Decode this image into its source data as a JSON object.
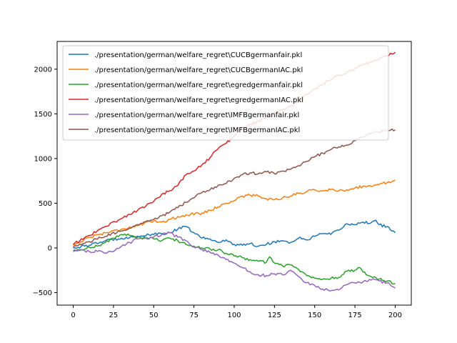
{
  "chart_data": {
    "type": "line",
    "title": "",
    "xlabel": "",
    "ylabel": "",
    "xlim": [
      -10,
      210
    ],
    "ylim": [
      -640,
      2310
    ],
    "xticks": [
      0,
      25,
      50,
      75,
      100,
      125,
      150,
      175,
      200
    ],
    "yticks": [
      -500,
      0,
      500,
      1000,
      1500,
      2000
    ],
    "grid": false,
    "legend_position": "top-left",
    "series": [
      {
        "name": "./presentation/german/welfare_regret\\CUCBgermanfair.pkl",
        "color": "#1f77b4",
        "anchors": [
          [
            0,
            0
          ],
          [
            10,
            30
          ],
          [
            20,
            80
          ],
          [
            30,
            110
          ],
          [
            40,
            130
          ],
          [
            50,
            150
          ],
          [
            60,
            170
          ],
          [
            65,
            210
          ],
          [
            70,
            240
          ],
          [
            75,
            170
          ],
          [
            80,
            110
          ],
          [
            85,
            100
          ],
          [
            90,
            60
          ],
          [
            95,
            90
          ],
          [
            100,
            40
          ],
          [
            105,
            30
          ],
          [
            110,
            50
          ],
          [
            115,
            20
          ],
          [
            120,
            40
          ],
          [
            125,
            70
          ],
          [
            130,
            80
          ],
          [
            135,
            60
          ],
          [
            140,
            110
          ],
          [
            145,
            90
          ],
          [
            150,
            130
          ],
          [
            155,
            160
          ],
          [
            160,
            150
          ],
          [
            165,
            200
          ],
          [
            170,
            270
          ],
          [
            175,
            260
          ],
          [
            180,
            290
          ],
          [
            185,
            280
          ],
          [
            188,
            310
          ],
          [
            190,
            260
          ],
          [
            195,
            240
          ],
          [
            198,
            190
          ],
          [
            200,
            170
          ]
        ]
      },
      {
        "name": "./presentation/german/welfare_regret\\CUCBgermanIAC.pkl",
        "color": "#ff7f0e",
        "anchors": [
          [
            0,
            30
          ],
          [
            10,
            120
          ],
          [
            20,
            170
          ],
          [
            30,
            210
          ],
          [
            40,
            250
          ],
          [
            50,
            300
          ],
          [
            55,
            290
          ],
          [
            60,
            320
          ],
          [
            70,
            370
          ],
          [
            80,
            390
          ],
          [
            85,
            420
          ],
          [
            90,
            460
          ],
          [
            95,
            500
          ],
          [
            100,
            530
          ],
          [
            105,
            580
          ],
          [
            110,
            590
          ],
          [
            115,
            580
          ],
          [
            120,
            550
          ],
          [
            125,
            540
          ],
          [
            130,
            560
          ],
          [
            135,
            580
          ],
          [
            140,
            610
          ],
          [
            145,
            630
          ],
          [
            150,
            650
          ],
          [
            155,
            640
          ],
          [
            160,
            650
          ],
          [
            165,
            640
          ],
          [
            170,
            650
          ],
          [
            175,
            670
          ],
          [
            180,
            690
          ],
          [
            185,
            690
          ],
          [
            190,
            710
          ],
          [
            195,
            730
          ],
          [
            200,
            760
          ]
        ]
      },
      {
        "name": "./presentation/german/welfare_regret\\egredgermanfair.pkl",
        "color": "#2ca02c",
        "anchors": [
          [
            0,
            -40
          ],
          [
            5,
            -20
          ],
          [
            10,
            10
          ],
          [
            15,
            20
          ],
          [
            20,
            60
          ],
          [
            25,
            110
          ],
          [
            30,
            150
          ],
          [
            35,
            140
          ],
          [
            40,
            120
          ],
          [
            45,
            110
          ],
          [
            50,
            100
          ],
          [
            55,
            80
          ],
          [
            60,
            110
          ],
          [
            65,
            80
          ],
          [
            70,
            40
          ],
          [
            75,
            20
          ],
          [
            80,
            0
          ],
          [
            85,
            -10
          ],
          [
            90,
            -20
          ],
          [
            95,
            -60
          ],
          [
            100,
            -90
          ],
          [
            105,
            -110
          ],
          [
            110,
            -130
          ],
          [
            115,
            -150
          ],
          [
            120,
            -160
          ],
          [
            122,
            -100
          ],
          [
            125,
            -170
          ],
          [
            130,
            -200
          ],
          [
            135,
            -190
          ],
          [
            140,
            -240
          ],
          [
            145,
            -310
          ],
          [
            150,
            -340
          ],
          [
            155,
            -350
          ],
          [
            160,
            -340
          ],
          [
            165,
            -330
          ],
          [
            170,
            -260
          ],
          [
            175,
            -250
          ],
          [
            178,
            -220
          ],
          [
            180,
            -270
          ],
          [
            185,
            -320
          ],
          [
            190,
            -350
          ],
          [
            195,
            -370
          ],
          [
            200,
            -400
          ]
        ]
      },
      {
        "name": "./presentation/german/welfare_regret\\egredgermanIAC.pkl",
        "color": "#d62728",
        "anchors": [
          [
            0,
            40
          ],
          [
            10,
            140
          ],
          [
            20,
            240
          ],
          [
            30,
            330
          ],
          [
            40,
            420
          ],
          [
            50,
            520
          ],
          [
            55,
            600
          ],
          [
            60,
            640
          ],
          [
            65,
            700
          ],
          [
            70,
            820
          ],
          [
            75,
            860
          ],
          [
            80,
            930
          ],
          [
            85,
            1010
          ],
          [
            90,
            1110
          ],
          [
            95,
            1170
          ],
          [
            100,
            1250
          ],
          [
            105,
            1340
          ],
          [
            110,
            1380
          ],
          [
            115,
            1420
          ],
          [
            120,
            1460
          ],
          [
            125,
            1510
          ],
          [
            130,
            1550
          ],
          [
            135,
            1590
          ],
          [
            140,
            1640
          ],
          [
            145,
            1720
          ],
          [
            150,
            1780
          ],
          [
            155,
            1830
          ],
          [
            160,
            1880
          ],
          [
            165,
            1930
          ],
          [
            170,
            1970
          ],
          [
            175,
            2010
          ],
          [
            180,
            2050
          ],
          [
            185,
            2080
          ],
          [
            190,
            2110
          ],
          [
            195,
            2150
          ],
          [
            200,
            2190
          ]
        ]
      },
      {
        "name": "./presentation/german/welfare_regret\\IMFBgermanfair.pkl",
        "color": "#9467bd",
        "anchors": [
          [
            0,
            -30
          ],
          [
            5,
            -20
          ],
          [
            10,
            -40
          ],
          [
            15,
            -40
          ],
          [
            20,
            -60
          ],
          [
            25,
            -40
          ],
          [
            30,
            20
          ],
          [
            35,
            60
          ],
          [
            40,
            100
          ],
          [
            45,
            110
          ],
          [
            50,
            120
          ],
          [
            55,
            150
          ],
          [
            60,
            170
          ],
          [
            65,
            120
          ],
          [
            70,
            80
          ],
          [
            75,
            10
          ],
          [
            80,
            -20
          ],
          [
            85,
            -50
          ],
          [
            90,
            -80
          ],
          [
            95,
            -130
          ],
          [
            100,
            -170
          ],
          [
            105,
            -220
          ],
          [
            110,
            -270
          ],
          [
            115,
            -300
          ],
          [
            120,
            -310
          ],
          [
            125,
            -290
          ],
          [
            130,
            -300
          ],
          [
            135,
            -250
          ],
          [
            140,
            -320
          ],
          [
            145,
            -390
          ],
          [
            150,
            -420
          ],
          [
            155,
            -460
          ],
          [
            160,
            -480
          ],
          [
            165,
            -470
          ],
          [
            170,
            -410
          ],
          [
            175,
            -390
          ],
          [
            180,
            -380
          ],
          [
            185,
            -360
          ],
          [
            190,
            -370
          ],
          [
            195,
            -390
          ],
          [
            200,
            -450
          ]
        ]
      },
      {
        "name": "./presentation/german/welfare_regret\\IMFBgermanIAC.pkl",
        "color": "#8c564b",
        "anchors": [
          [
            0,
            10
          ],
          [
            10,
            70
          ],
          [
            20,
            130
          ],
          [
            30,
            190
          ],
          [
            40,
            260
          ],
          [
            50,
            320
          ],
          [
            55,
            360
          ],
          [
            60,
            400
          ],
          [
            65,
            450
          ],
          [
            70,
            510
          ],
          [
            75,
            560
          ],
          [
            80,
            620
          ],
          [
            85,
            650
          ],
          [
            90,
            700
          ],
          [
            95,
            720
          ],
          [
            100,
            780
          ],
          [
            105,
            820
          ],
          [
            110,
            840
          ],
          [
            115,
            830
          ],
          [
            120,
            850
          ],
          [
            125,
            830
          ],
          [
            130,
            860
          ],
          [
            135,
            880
          ],
          [
            140,
            920
          ],
          [
            145,
            970
          ],
          [
            150,
            1020
          ],
          [
            155,
            1060
          ],
          [
            160,
            1100
          ],
          [
            165,
            1130
          ],
          [
            170,
            1150
          ],
          [
            175,
            1200
          ],
          [
            180,
            1240
          ],
          [
            185,
            1280
          ],
          [
            190,
            1300
          ],
          [
            195,
            1310
          ],
          [
            200,
            1320
          ]
        ]
      }
    ]
  }
}
